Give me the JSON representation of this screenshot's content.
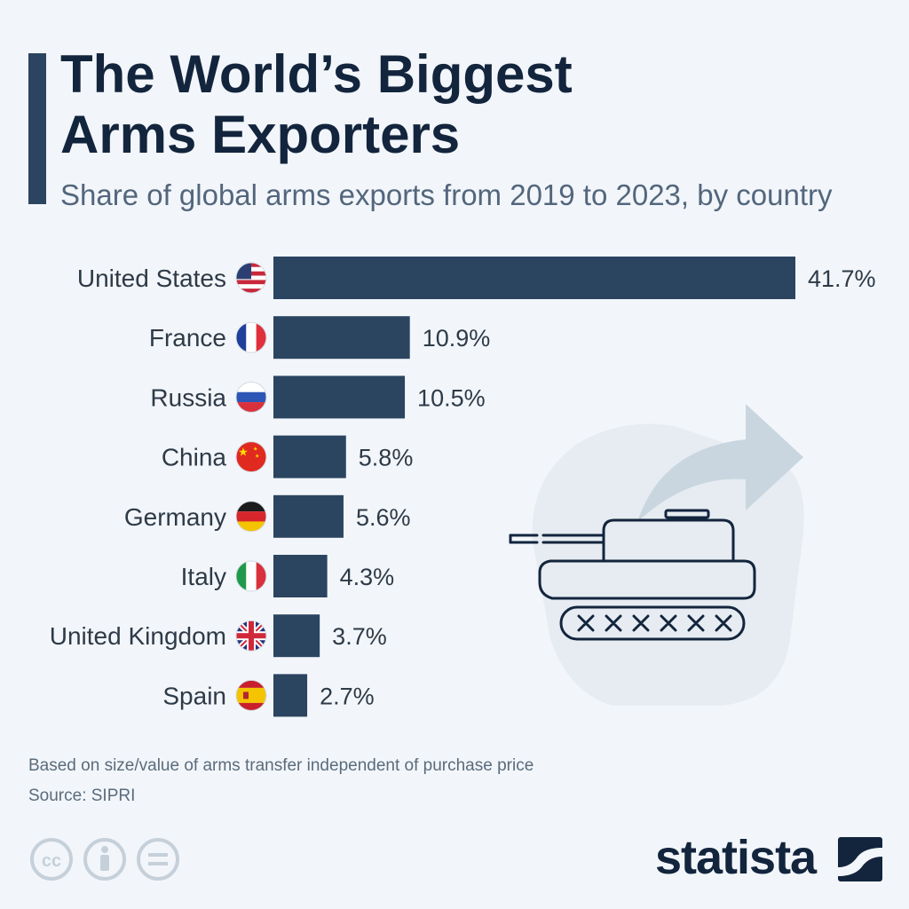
{
  "header": {
    "title_line1": "The World’s Biggest",
    "title_line2": "Arms Exporters",
    "subtitle": "Share of global arms exports from 2019 to 2023, by country"
  },
  "chart_data": {
    "type": "bar",
    "orientation": "horizontal",
    "title": "The World’s Biggest Arms Exporters",
    "subtitle": "Share of global arms exports from 2019 to 2023, by country",
    "categories": [
      "United States",
      "France",
      "Russia",
      "China",
      "Germany",
      "Italy",
      "United Kingdom",
      "Spain"
    ],
    "values": [
      41.7,
      10.9,
      10.5,
      5.8,
      5.6,
      4.3,
      3.7,
      2.7
    ],
    "value_labels": [
      "41.7%",
      "10.9%",
      "10.5%",
      "5.8%",
      "5.6%",
      "4.3%",
      "3.7%",
      "2.7%"
    ],
    "unit": "%",
    "flags": [
      "us-flag-icon",
      "france-flag-icon",
      "russia-flag-icon",
      "china-flag-icon",
      "germany-flag-icon",
      "italy-flag-icon",
      "uk-flag-icon",
      "spain-flag-icon"
    ],
    "bar_color": "#2b4460",
    "xlim": [
      0,
      41.7
    ],
    "grid": false,
    "legend": "none"
  },
  "illustration": {
    "name": "tank-with-arrow-icon",
    "arrow_color": "#c9d6df",
    "blob_color": "#e6ecf1"
  },
  "footer": {
    "note": "Based on size/value of arms transfer independent of purchase price",
    "source": "Source: SIPRI",
    "license_icons": [
      "cc-icon",
      "attribution-icon",
      "no-derivatives-icon"
    ],
    "brand": "statista"
  },
  "colors": {
    "dark_navy": "#13253d",
    "bar": "#2b4460",
    "background": "#f2f6fa"
  }
}
